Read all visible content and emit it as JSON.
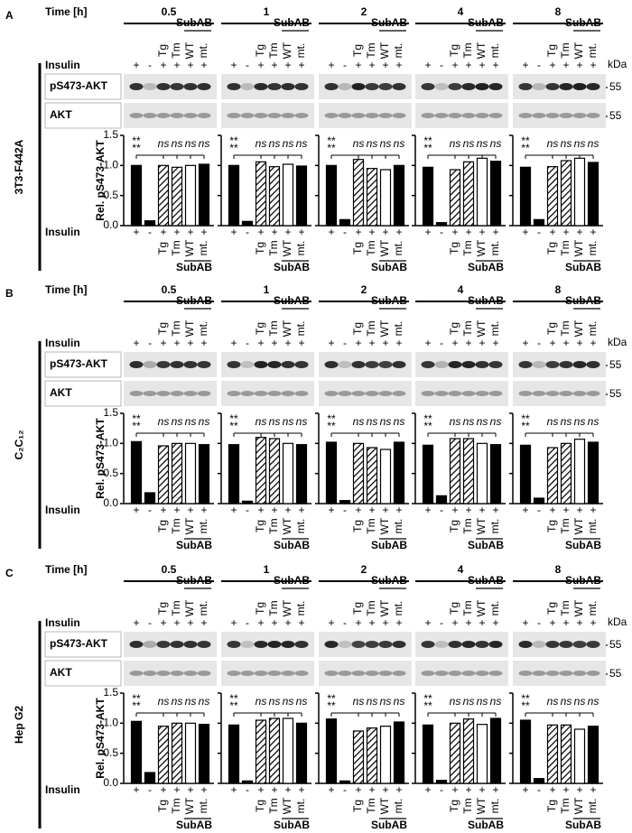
{
  "labels": {
    "time": "Time [h]",
    "insulin": "Insulin",
    "kda": "kDa",
    "marker": "55",
    "phospho": "pS473-AKT",
    "total": "AKT",
    "y_axis": "Rel. pS473-AKT",
    "subab": "SubAB",
    "sig": "**",
    "ns": "ns"
  },
  "lanes": {
    "insulin": [
      "+",
      "-",
      "+",
      "+",
      "+",
      "+"
    ],
    "treatment": [
      null,
      null,
      "Tg",
      "Tm",
      "WT",
      "mt."
    ]
  },
  "ylim": [
    0,
    1.5
  ],
  "yticks": [
    {
      "value": 0,
      "label": "0.0"
    },
    {
      "value": 0.5,
      "label": "0.5"
    },
    {
      "value": 1,
      "label": "1.0"
    },
    {
      "value": 1.5,
      "label": "1.5"
    }
  ],
  "panels": [
    {
      "letter": "A",
      "cell_line": "3T3-F442A",
      "times": [
        "0.5",
        "1",
        "2",
        "4",
        "8"
      ],
      "values": [
        [
          1.0,
          0.08,
          1.0,
          0.97,
          1.0,
          1.02
        ],
        [
          1.0,
          0.07,
          1.06,
          0.98,
          1.02,
          0.99
        ],
        [
          1.0,
          0.1,
          1.1,
          0.95,
          0.93,
          1.0
        ],
        [
          0.97,
          0.05,
          0.93,
          1.06,
          1.12,
          1.07
        ],
        [
          0.97,
          0.1,
          0.98,
          1.08,
          1.12,
          1.05
        ]
      ]
    },
    {
      "letter": "B",
      "cell_line": "C₂C₁₂",
      "times": [
        "0.5",
        "1",
        "2",
        "4",
        "8"
      ],
      "values": [
        [
          1.03,
          0.18,
          0.96,
          1.0,
          1.0,
          0.98
        ],
        [
          0.98,
          0.04,
          1.1,
          1.08,
          1.0,
          0.98
        ],
        [
          1.02,
          0.05,
          1.0,
          0.93,
          0.9,
          1.02
        ],
        [
          0.97,
          0.13,
          1.08,
          1.08,
          1.0,
          0.98
        ],
        [
          0.97,
          0.09,
          0.93,
          1.0,
          1.07,
          1.02
        ]
      ]
    },
    {
      "letter": "C",
      "cell_line": "Hep G2",
      "times": [
        "0.5",
        "1",
        "2",
        "4",
        "8"
      ],
      "values": [
        [
          1.03,
          0.18,
          0.95,
          1.0,
          1.0,
          0.98
        ],
        [
          0.97,
          0.04,
          1.05,
          1.08,
          1.08,
          1.0
        ],
        [
          1.07,
          0.04,
          0.87,
          0.92,
          0.95,
          1.02
        ],
        [
          0.97,
          0.05,
          1.0,
          1.07,
          0.98,
          1.08
        ],
        [
          1.05,
          0.08,
          0.97,
          0.97,
          0.9,
          0.95
        ]
      ]
    }
  ]
}
